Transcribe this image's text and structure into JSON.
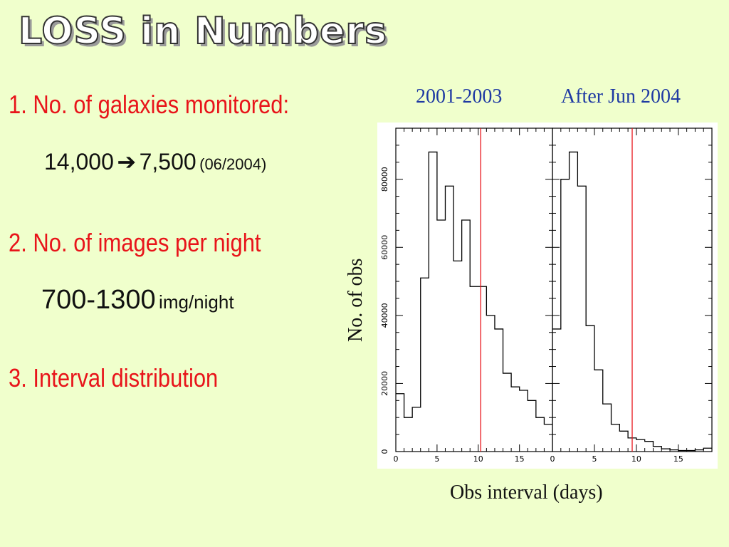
{
  "slide": {
    "title": "LOSS in Numbers",
    "item1": {
      "label": "1. No. of galaxies monitored:",
      "value": "14,000",
      "arrow": "➔",
      "value2": "7,500",
      "note": "(06/2004)"
    },
    "item2": {
      "label": "2.  No. of images per night",
      "value": "700-1300",
      "unit": "img/night"
    },
    "item3": {
      "label": "3.  Interval distribution"
    }
  },
  "chart_data": [
    {
      "type": "histogram",
      "title": "2001-2003",
      "xlabel": "Obs interval (days)",
      "ylabel": "No. of obs",
      "xlim": [
        0,
        19
      ],
      "ylim": [
        0,
        95000
      ],
      "x_ticks": [
        0,
        5,
        10,
        15
      ],
      "y_ticks": [
        0,
        20000,
        40000,
        60000,
        80000
      ],
      "y_tick_labels": [
        "0",
        "20000",
        "40000",
        "60000",
        "80000"
      ],
      "bin_width": 1,
      "bin_starts": [
        0,
        1,
        2,
        3,
        4,
        5,
        6,
        7,
        8,
        9,
        10,
        11,
        12,
        13,
        14,
        15,
        16,
        17,
        18
      ],
      "values": [
        17000,
        10000,
        13000,
        51000,
        88000,
        68000,
        78000,
        56000,
        68000,
        48500,
        48500,
        40000,
        36000,
        23000,
        19000,
        18000,
        15000,
        10000,
        8000
      ],
      "reference_line_x": 10.3
    },
    {
      "type": "histogram",
      "title": "After Jun 2004",
      "xlabel": "Obs interval (days)",
      "ylabel": "No. of obs",
      "xlim": [
        0,
        19
      ],
      "ylim": [
        0,
        95000
      ],
      "x_ticks": [
        0,
        5,
        10,
        15
      ],
      "bin_width": 1,
      "bin_starts": [
        0,
        1,
        2,
        3,
        4,
        5,
        6,
        7,
        8,
        9,
        10,
        11,
        12,
        13,
        14,
        15,
        16,
        17,
        18
      ],
      "values": [
        36000,
        80000,
        88000,
        78000,
        37000,
        24000,
        14000,
        8000,
        6000,
        4000,
        3500,
        3000,
        1500,
        800,
        500,
        300,
        300,
        500,
        1000
      ],
      "reference_line_x": 9.5
    }
  ]
}
